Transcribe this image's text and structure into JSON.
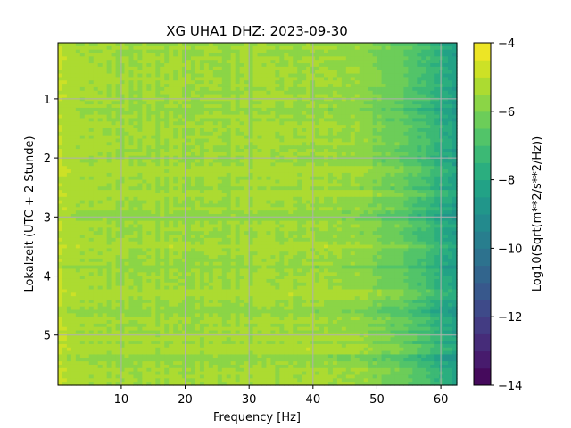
{
  "chart_data": {
    "type": "heatmap",
    "title": "XG UHA1  DHZ: 2023-09-30",
    "xlabel": "Frequency [Hz]",
    "ylabel": "Lokalzeit (UTC + 2 Stunde)",
    "xlim": [
      0.1,
      62.5
    ],
    "ylim": [
      5.85,
      0.05
    ],
    "xticks": [
      10,
      20,
      30,
      40,
      50,
      60
    ],
    "yticks": [
      1,
      2,
      3,
      4,
      5
    ],
    "grid": true,
    "colorbar": {
      "label": "Log10(Sqrt(m**2/s**2/Hz))",
      "range": [
        -14,
        -4
      ],
      "ticks": [
        -4,
        -6,
        -8,
        -10,
        -12,
        -14
      ],
      "colormap": "viridis",
      "levels": 20
    },
    "frequency_profile": {
      "x": [
        0,
        5,
        10,
        20,
        30,
        40,
        45,
        50,
        55,
        58,
        60,
        62.5
      ],
      "values": [
        -5.0,
        -5.4,
        -5.5,
        -5.5,
        -5.5,
        -5.5,
        -5.6,
        -6.0,
        -6.6,
        -7.2,
        -7.8,
        -8.3
      ]
    },
    "bright_bands_hours": [
      2.2,
      2.6,
      3.5,
      4.3,
      5.05,
      5.25
    ],
    "dark_bands_hours": [
      1.2,
      3.0,
      3.85,
      4.6,
      5.4
    ]
  }
}
